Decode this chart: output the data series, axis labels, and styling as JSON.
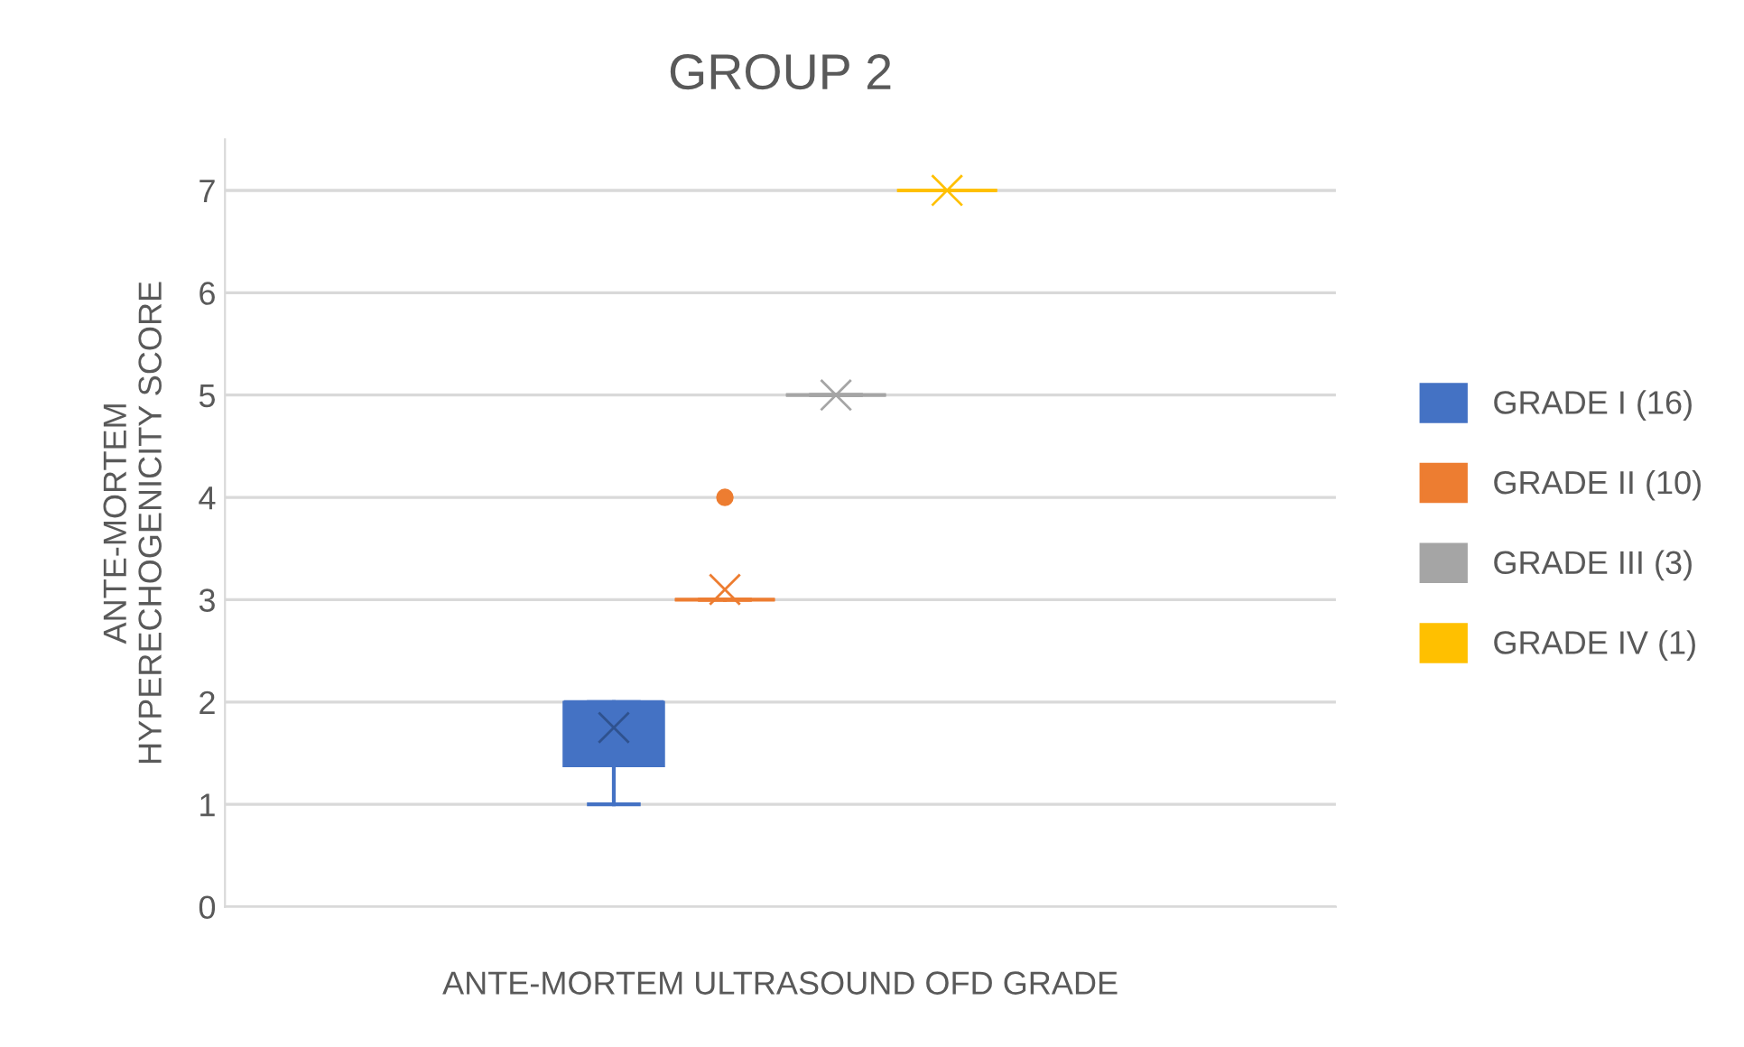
{
  "chart_data": {
    "type": "box",
    "title": "GROUP 2",
    "xlabel": "ANTE-MORTEM ULTRASOUND OFD GRADE",
    "ylabel": "ANTE-MORTEM\nHYPERECHOGENICITY SCORE",
    "categories": [
      null
    ],
    "series": [
      {
        "name": "GRADE I (16)",
        "color": "#4472c4",
        "boxes": [
          {
            "low": 1,
            "q1": 1.375,
            "median": 2,
            "q3": 2,
            "high": 2,
            "mean": 1.75
          }
        ]
      },
      {
        "name": "GRADE II (10)",
        "color": "#ed7d31",
        "boxes": [
          {
            "low": 3,
            "q1": 3,
            "median": 3,
            "q3": 3,
            "high": 3,
            "mean": 3.1,
            "outliers": [
              4
            ]
          }
        ]
      },
      {
        "name": "GRADE III (3)",
        "color": "#a5a5a5",
        "boxes": [
          {
            "low": 5,
            "q1": 5,
            "median": 5,
            "q3": 5,
            "high": 5,
            "mean": 5
          }
        ]
      },
      {
        "name": "GRADE IV (1)",
        "color": "#ffc000",
        "boxes": [
          {
            "low": 7,
            "q1": 7,
            "median": 7,
            "q3": 7,
            "high": 7,
            "mean": 7
          }
        ]
      }
    ],
    "ylim": [
      0,
      7.5
    ],
    "yticks": [
      0,
      1,
      2,
      3,
      4,
      5,
      6,
      7
    ],
    "grid": "y",
    "legend": "right",
    "marker": "cross"
  }
}
